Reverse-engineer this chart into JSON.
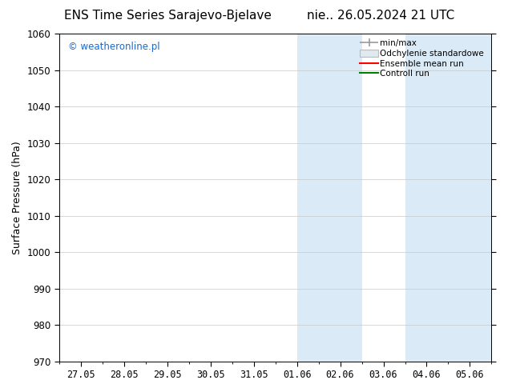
{
  "title_left": "ENS Time Series Sarajevo-Bjelave",
  "title_right": "nie.. 26.05.2024 21 UTC",
  "ylabel": "Surface Pressure (hPa)",
  "watermark": "© weatheronline.pl",
  "watermark_color": "#1a6acd",
  "ylim": [
    970,
    1060
  ],
  "yticks": [
    970,
    980,
    990,
    1000,
    1010,
    1020,
    1030,
    1040,
    1050,
    1060
  ],
  "xtick_labels": [
    "27.05",
    "28.05",
    "29.05",
    "30.05",
    "31.05",
    "01.06",
    "02.06",
    "03.06",
    "04.06",
    "05.06"
  ],
  "xtick_positions": [
    0,
    1,
    2,
    3,
    4,
    5,
    6,
    7,
    8,
    9
  ],
  "xlim": [
    -0.5,
    9.5
  ],
  "shaded_bands": [
    {
      "x_start": 5.0,
      "x_end": 6.5,
      "color": "#daeaf7"
    },
    {
      "x_start": 7.5,
      "x_end": 9.5,
      "color": "#daeaf7"
    }
  ],
  "background_color": "#ffffff",
  "grid_color": "#c8c8c8",
  "legend_labels": [
    "min/max",
    "Odchylenie standardowe",
    "Ensemble mean run",
    "Controll run"
  ],
  "legend_colors_line": [
    "#aaaaaa",
    "#cccccc",
    "#ff0000",
    "#008000"
  ],
  "title_fontsize": 11,
  "label_fontsize": 9,
  "tick_fontsize": 8.5
}
